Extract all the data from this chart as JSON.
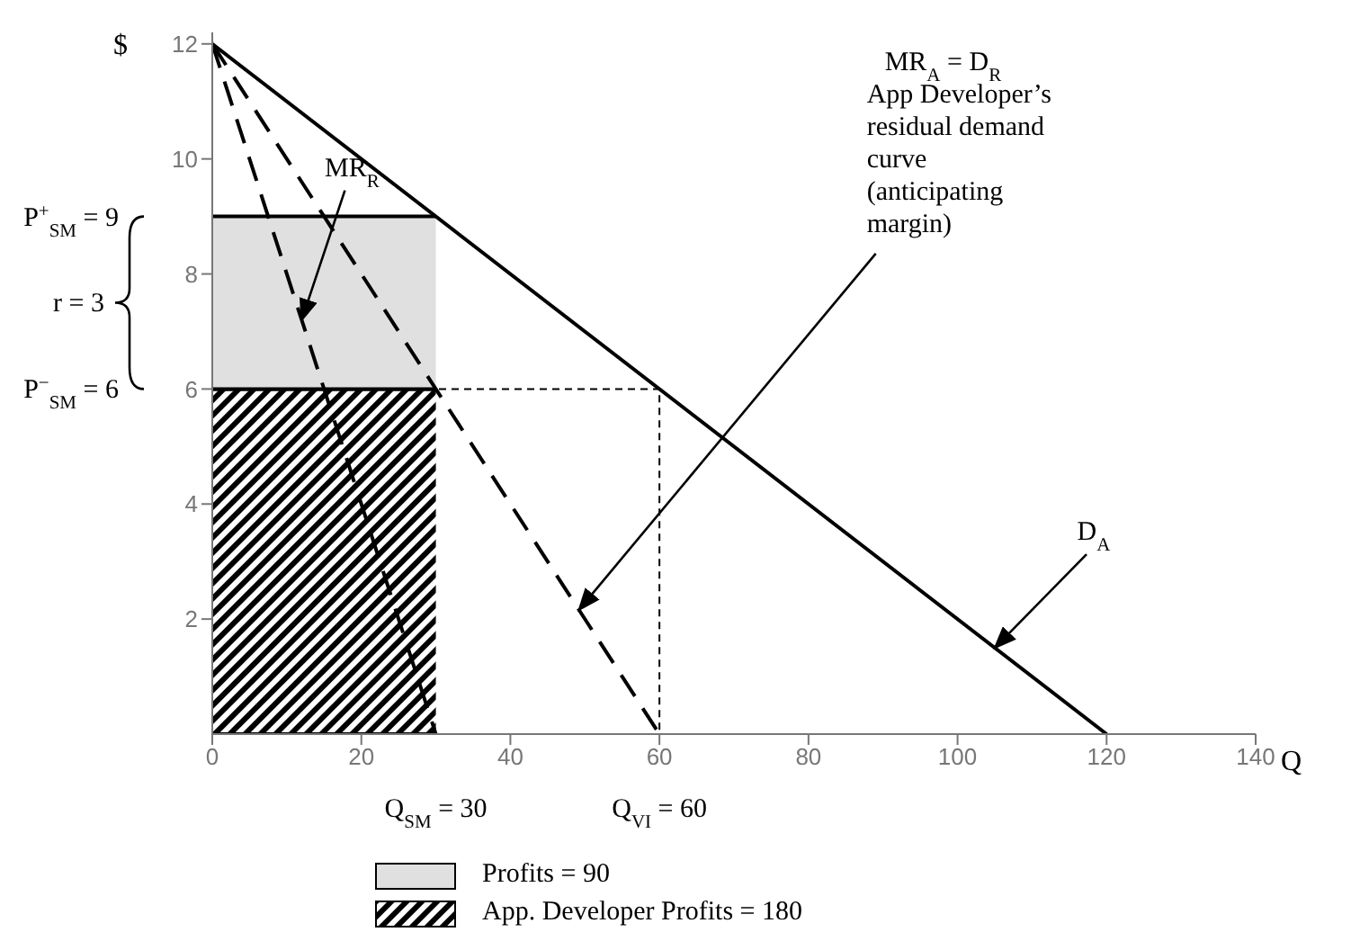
{
  "chart_data": {
    "type": "line",
    "xlabel": "Q",
    "ylabel": "$",
    "xlim": [
      0,
      140
    ],
    "ylim": [
      0,
      12.2
    ],
    "xticks": [
      0,
      20,
      40,
      60,
      80,
      100,
      120,
      140
    ],
    "yticks": [
      2,
      4,
      6,
      8,
      10,
      12
    ],
    "grid": false,
    "legend": "bottom",
    "marker": "none",
    "stacked": true,
    "series": [
      {
        "type": "area",
        "name": "App. Developer Profits = 180",
        "color": "#000000",
        "x": [
          0,
          30
        ],
        "values": [
          6,
          6
        ]
      },
      {
        "type": "area",
        "name": "Profits = 90",
        "color": "#e0e0e0",
        "x": [
          0,
          30
        ],
        "values": [
          3,
          3
        ]
      },
      {
        "color": "#000000",
        "x": [
          0,
          120
        ],
        "values": [
          12,
          0
        ],
        "line_style": "solid"
      },
      {
        "color": "#000000",
        "x": [
          0,
          60
        ],
        "values": [
          12,
          0
        ],
        "line_style": "dashed"
      },
      {
        "color": "#000000",
        "x": [
          0,
          30
        ],
        "values": [
          12,
          0
        ],
        "line_style": "dashed"
      },
      {
        "color": "#000000",
        "x": [
          0,
          60,
          60
        ],
        "values": [
          6,
          6,
          0
        ],
        "line_style": "dotted"
      }
    ],
    "annotations": [
      {
        "text": "MR$_{R}$",
        "x": 12,
        "y": 7.2
      },
      "MR$_{A}$ = D$_{R}$",
      "App Developer’s",
      "residual demand",
      "curve",
      "(anticipating",
      "margin)",
      {
        "text": "D$_{A}$",
        "x": 105,
        "y": 1.5
      },
      "P$^{+}$$_{SM}$ = 9",
      "r = 3",
      "P$^{−}$$_{SM}$ = 6",
      "Q$_{SM}$ = 30",
      "Q$_{VI}$ = 60"
    ]
  }
}
